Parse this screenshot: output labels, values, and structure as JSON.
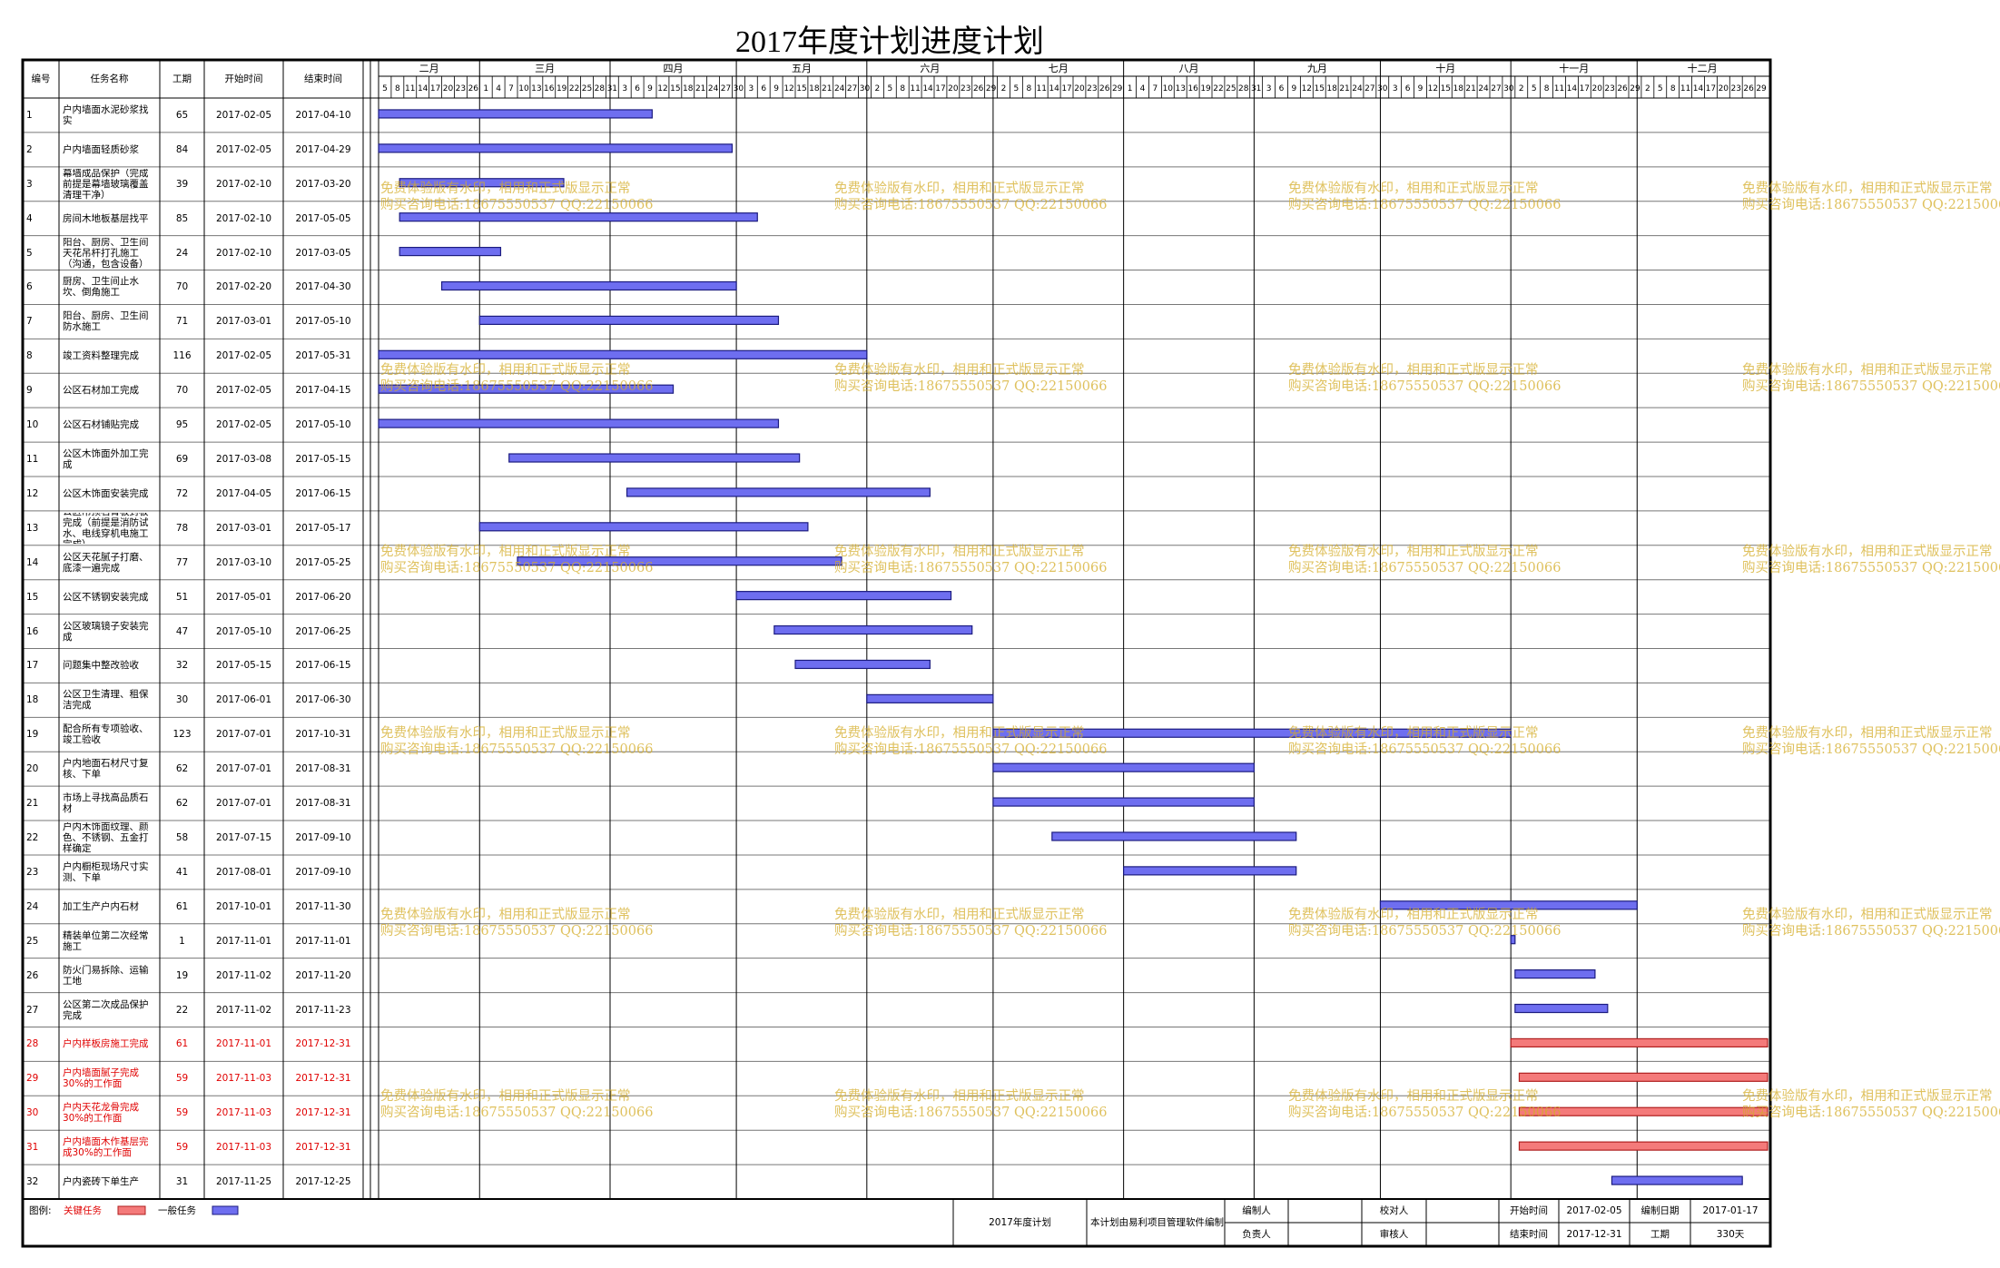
{
  "title": "2017年度计划进度计划",
  "columns": [
    "编号",
    "任务名称",
    "工期",
    "开始时间",
    "结束时间"
  ],
  "months": [
    "二月",
    "三月",
    "四月",
    "五月",
    "六月",
    "七月",
    "八月",
    "九月",
    "十月",
    "十一月",
    "十二月"
  ],
  "day_ticks": [
    [
      5,
      8,
      11,
      14,
      17,
      20,
      23,
      26
    ],
    [
      1,
      4,
      7,
      10,
      13,
      16,
      19,
      22,
      25,
      28,
      31
    ],
    [
      3,
      6,
      9,
      12,
      15,
      18,
      21,
      24,
      27,
      30
    ],
    [
      3,
      6,
      9,
      12,
      15,
      18,
      21,
      24,
      27,
      30
    ],
    [
      2,
      5,
      8,
      11,
      14,
      17,
      20,
      23,
      26,
      29
    ],
    [
      2,
      5,
      8,
      11,
      14,
      17,
      20,
      23,
      26,
      29
    ],
    [
      1,
      4,
      7,
      10,
      13,
      16,
      19,
      22,
      25,
      28,
      31
    ],
    [
      3,
      6,
      9,
      12,
      15,
      18,
      21,
      24,
      27,
      30
    ],
    [
      3,
      6,
      9,
      12,
      15,
      18,
      21,
      24,
      27,
      30
    ],
    [
      2,
      5,
      8,
      11,
      14,
      17,
      20,
      23,
      26,
      29
    ],
    [
      2,
      5,
      8,
      11,
      14,
      17,
      20,
      23,
      26,
      29
    ]
  ],
  "rows": [
    {
      "id": 1,
      "name": "户内墙面水泥砂浆找实",
      "duration": 65,
      "start": "2017-02-05",
      "end": "2017-04-10",
      "critical": false
    },
    {
      "id": 2,
      "name": "户内墙面轻质砂浆",
      "duration": 84,
      "start": "2017-02-05",
      "end": "2017-04-29",
      "critical": false
    },
    {
      "id": 3,
      "name": "幕墙成品保护（完成前提是幕墙玻璃覆盖清理干净）",
      "duration": 39,
      "start": "2017-02-10",
      "end": "2017-03-20",
      "critical": false
    },
    {
      "id": 4,
      "name": "房间木地板基层找平",
      "duration": 85,
      "start": "2017-02-10",
      "end": "2017-05-05",
      "critical": false
    },
    {
      "id": 5,
      "name": "阳台、厨房、卫生间天花吊杆打孔施工（沟通，包含设备）",
      "duration": 24,
      "start": "2017-02-10",
      "end": "2017-03-05",
      "critical": false
    },
    {
      "id": 6,
      "name": "厨房、卫生间止水坎、倒角施工",
      "duration": 70,
      "start": "2017-02-20",
      "end": "2017-04-30",
      "critical": false
    },
    {
      "id": 7,
      "name": "阳台、厨房、卫生间防水施工",
      "duration": 71,
      "start": "2017-03-01",
      "end": "2017-05-10",
      "critical": false
    },
    {
      "id": 8,
      "name": "竣工资料整理完成",
      "duration": 116,
      "start": "2017-02-05",
      "end": "2017-05-31",
      "critical": false
    },
    {
      "id": 9,
      "name": "公区石材加工完成",
      "duration": 70,
      "start": "2017-02-05",
      "end": "2017-04-15",
      "critical": false
    },
    {
      "id": 10,
      "name": "公区石材铺贴完成",
      "duration": 95,
      "start": "2017-02-05",
      "end": "2017-05-10",
      "critical": false
    },
    {
      "id": 11,
      "name": "公区木饰面外加工完成",
      "duration": 69,
      "start": "2017-03-08",
      "end": "2017-05-15",
      "critical": false
    },
    {
      "id": 12,
      "name": "公区木饰面安装完成",
      "duration": 72,
      "start": "2017-04-05",
      "end": "2017-06-15",
      "critical": false
    },
    {
      "id": 13,
      "name": "公区吊顶石膏板封板完成（前提是消防试水、电线穿机电施工完成）",
      "duration": 78,
      "start": "2017-03-01",
      "end": "2017-05-17",
      "critical": false
    },
    {
      "id": 14,
      "name": "公区天花腻子打磨、底漆一遍完成",
      "duration": 77,
      "start": "2017-03-10",
      "end": "2017-05-25",
      "critical": false
    },
    {
      "id": 15,
      "name": "公区不锈钢安装完成",
      "duration": 51,
      "start": "2017-05-01",
      "end": "2017-06-20",
      "critical": false
    },
    {
      "id": 16,
      "name": "公区玻璃镜子安装完成",
      "duration": 47,
      "start": "2017-05-10",
      "end": "2017-06-25",
      "critical": false
    },
    {
      "id": 17,
      "name": "问题集中整改验收",
      "duration": 32,
      "start": "2017-05-15",
      "end": "2017-06-15",
      "critical": false
    },
    {
      "id": 18,
      "name": "公区卫生清理、租保洁完成",
      "duration": 30,
      "start": "2017-06-01",
      "end": "2017-06-30",
      "critical": false
    },
    {
      "id": 19,
      "name": "配合所有专项验收、竣工验收",
      "duration": 123,
      "start": "2017-07-01",
      "end": "2017-10-31",
      "critical": false
    },
    {
      "id": 20,
      "name": "户内地面石材尺寸复核、下单",
      "duration": 62,
      "start": "2017-07-01",
      "end": "2017-08-31",
      "critical": false
    },
    {
      "id": 21,
      "name": "市场上寻找高品质石材",
      "duration": 62,
      "start": "2017-07-01",
      "end": "2017-08-31",
      "critical": false
    },
    {
      "id": 22,
      "name": "户内木饰面纹理、颜色、不锈钢、五金打样确定",
      "duration": 58,
      "start": "2017-07-15",
      "end": "2017-09-10",
      "critical": false
    },
    {
      "id": 23,
      "name": "户内橱柜现场尺寸实测、下单",
      "duration": 41,
      "start": "2017-08-01",
      "end": "2017-09-10",
      "critical": false
    },
    {
      "id": 24,
      "name": "加工生产户内石材",
      "duration": 61,
      "start": "2017-10-01",
      "end": "2017-11-30",
      "critical": false
    },
    {
      "id": 25,
      "name": "精装单位第二次经常施工",
      "duration": 1,
      "start": "2017-11-01",
      "end": "2017-11-01",
      "critical": false
    },
    {
      "id": 26,
      "name": "防火门易拆除、运输工地",
      "duration": 19,
      "start": "2017-11-02",
      "end": "2017-11-20",
      "critical": false
    },
    {
      "id": 27,
      "name": "公区第二次成品保护完成",
      "duration": 22,
      "start": "2017-11-02",
      "end": "2017-11-23",
      "critical": false
    },
    {
      "id": 28,
      "name": "户内样板房施工完成",
      "duration": 61,
      "start": "2017-11-01",
      "end": "2017-12-31",
      "critical": true
    },
    {
      "id": 29,
      "name": "户内墙面腻子完成30%的工作面",
      "duration": 59,
      "start": "2017-11-03",
      "end": "2017-12-31",
      "critical": true
    },
    {
      "id": 30,
      "name": "户内天花龙骨完成30%的工作面",
      "duration": 59,
      "start": "2017-11-03",
      "end": "2017-12-31",
      "critical": true
    },
    {
      "id": 31,
      "name": "户内墙面木作基层完成30%的工作面",
      "duration": 59,
      "start": "2017-11-03",
      "end": "2017-12-31",
      "critical": true
    },
    {
      "id": 32,
      "name": "户内瓷砖下单生产",
      "duration": 31,
      "start": "2017-11-25",
      "end": "2017-12-25",
      "critical": false
    }
  ],
  "watermark": [
    "免费体验版有水印，相用和正式版显示正常",
    "购买咨询电话:18675550537 QQ:22150066"
  ],
  "legend": {
    "label": "图例:",
    "critical": "关键任务",
    "normal": "一般任务"
  },
  "footer": {
    "plan_name": "2017年度计划",
    "note": "本计划由易利项目管理软件编制",
    "editor_label": "编制人",
    "checker_label": "校对人",
    "owner_label": "负责人",
    "reviewer_label": "审核人",
    "start_label": "开始时间",
    "start_value": "2017-02-05",
    "end_label": "结束时间",
    "end_value": "2017-12-31",
    "date_label": "编制日期",
    "date_value": "2017-01-17",
    "duration_label": "工期",
    "duration_value": "330天"
  }
}
